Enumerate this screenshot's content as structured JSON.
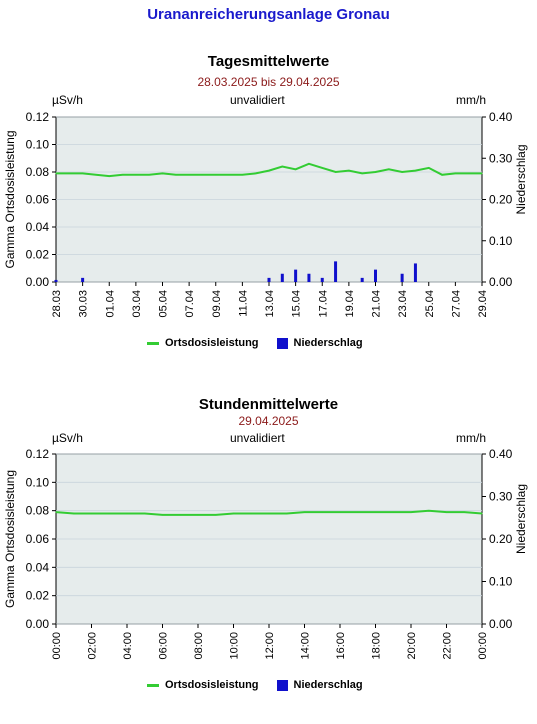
{
  "page": {
    "title": "Urananreicherungsanlage Gronau"
  },
  "colors": {
    "dose": "#33cc33",
    "precip": "#1010cc",
    "plotbg": "#e6ecec",
    "title": "#1a1acc",
    "subtitle": "#8b1a1a"
  },
  "legend": {
    "dose": "Ortsdosisleistung",
    "precip": "Niederschlag"
  },
  "chart_data": [
    {
      "type": "line",
      "title": "Tagesmittelwerte",
      "subtitle": "28.03.2025 bis 29.04.2025",
      "status": "unvalidiert",
      "left_unit": "µSv/h",
      "right_unit": "mm/h",
      "ylabel": "Gamma Ortsdosisleistung",
      "y2label": "Niederschlag",
      "ylim": [
        0,
        0.12
      ],
      "y2lim": [
        0,
        0.4
      ],
      "yticks": [
        "0.00",
        "0.02",
        "0.04",
        "0.06",
        "0.08",
        "0.10",
        "0.12"
      ],
      "y2ticks": [
        "0.00",
        "0.10",
        "0.20",
        "0.30",
        "0.40"
      ],
      "xticks": [
        "28.03",
        "30.03",
        "01.04",
        "03.04",
        "05.04",
        "07.04",
        "09.04",
        "11.04",
        "13.04",
        "15.04",
        "17.04",
        "19.04",
        "21.04",
        "23.04",
        "25.04",
        "27.04",
        "29.04"
      ],
      "grid": true,
      "series": [
        {
          "name": "Ortsdosisleistung",
          "x": [
            "28.03",
            "29.03",
            "30.03",
            "31.03",
            "01.04",
            "02.04",
            "03.04",
            "04.04",
            "05.04",
            "06.04",
            "07.04",
            "08.04",
            "09.04",
            "10.04",
            "11.04",
            "12.04",
            "13.04",
            "14.04",
            "15.04",
            "16.04",
            "17.04",
            "18.04",
            "19.04",
            "20.04",
            "21.04",
            "22.04",
            "23.04",
            "24.04",
            "25.04",
            "26.04",
            "27.04",
            "28.04",
            "29.04"
          ],
          "values": [
            0.079,
            0.079,
            0.079,
            0.078,
            0.077,
            0.078,
            0.078,
            0.078,
            0.079,
            0.078,
            0.078,
            0.078,
            0.078,
            0.078,
            0.078,
            0.079,
            0.081,
            0.084,
            0.082,
            0.086,
            0.083,
            0.08,
            0.081,
            0.079,
            0.08,
            0.082,
            0.08,
            0.081,
            0.083,
            0.078,
            0.079,
            0.079,
            0.079
          ]
        },
        {
          "name": "Niederschlag",
          "x": [
            "28.03",
            "30.03",
            "13.04",
            "14.04",
            "15.04",
            "16.04",
            "17.04",
            "18.04",
            "20.04",
            "21.04",
            "23.04",
            "24.04"
          ],
          "values": [
            0.005,
            0.01,
            0.01,
            0.02,
            0.03,
            0.02,
            0.01,
            0.05,
            0.01,
            0.03,
            0.02,
            0.045
          ]
        }
      ]
    },
    {
      "type": "line",
      "title": "Stundenmittelwerte",
      "subtitle": "29.04.2025",
      "status": "unvalidiert",
      "left_unit": "µSv/h",
      "right_unit": "mm/h",
      "ylabel": "Gamma Ortsdosisleistung",
      "y2label": "Niederschlag",
      "ylim": [
        0,
        0.12
      ],
      "y2lim": [
        0,
        0.4
      ],
      "yticks": [
        "0.00",
        "0.02",
        "0.04",
        "0.06",
        "0.08",
        "0.10",
        "0.12"
      ],
      "y2ticks": [
        "0.00",
        "0.10",
        "0.20",
        "0.30",
        "0.40"
      ],
      "xticks": [
        "00:00",
        "02:00",
        "04:00",
        "06:00",
        "08:00",
        "10:00",
        "12:00",
        "14:00",
        "16:00",
        "18:00",
        "20:00",
        "22:00",
        "00:00"
      ],
      "grid": true,
      "series": [
        {
          "name": "Ortsdosisleistung",
          "x": [
            "00:00",
            "01:00",
            "02:00",
            "03:00",
            "04:00",
            "05:00",
            "06:00",
            "07:00",
            "08:00",
            "09:00",
            "10:00",
            "11:00",
            "12:00",
            "13:00",
            "14:00",
            "15:00",
            "16:00",
            "17:00",
            "18:00",
            "19:00",
            "20:00",
            "21:00",
            "22:00",
            "23:00",
            "24:00"
          ],
          "values": [
            0.079,
            0.078,
            0.078,
            0.078,
            0.078,
            0.078,
            0.077,
            0.077,
            0.077,
            0.077,
            0.078,
            0.078,
            0.078,
            0.078,
            0.079,
            0.079,
            0.079,
            0.079,
            0.079,
            0.079,
            0.079,
            0.08,
            0.079,
            0.079,
            0.078
          ]
        },
        {
          "name": "Niederschlag",
          "x": [],
          "values": []
        }
      ]
    }
  ]
}
